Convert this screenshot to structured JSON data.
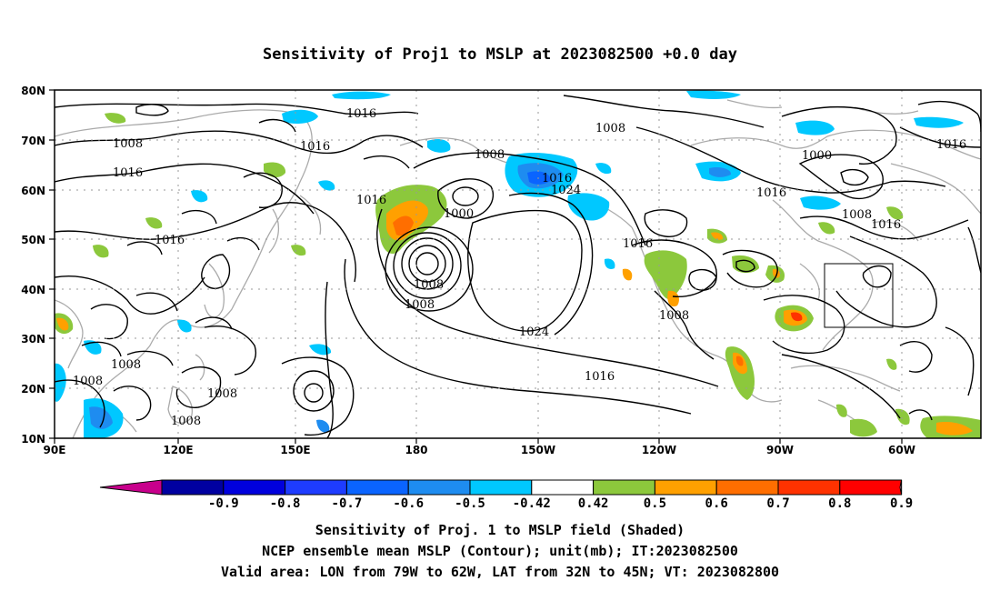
{
  "title": "Sensitivity of Proj1 to MSLP at 2023082500 +0.0 day",
  "lat_labels": [
    "80N",
    "70N",
    "60N",
    "50N",
    "40N",
    "30N",
    "20N",
    "10N"
  ],
  "lon_labels": [
    "90E",
    "120E",
    "150E",
    "180",
    "150W",
    "120W",
    "90W",
    "60W"
  ],
  "contour_labels": [
    "1016",
    "1008",
    "1008",
    "1016",
    "1016",
    "1008",
    "1000",
    "1016",
    "1016",
    "1024",
    "1016",
    "1000",
    "1008",
    "1024",
    "1016",
    "1016",
    "1008",
    "1016",
    "1016",
    "1008",
    "1008",
    "1008",
    "1008",
    "1016",
    "1008"
  ],
  "colorbar": {
    "labels": [
      "-0.9",
      "-0.8",
      "-0.7",
      "-0.6",
      "-0.5",
      "-0.42",
      "0.42",
      "0.5",
      "0.6",
      "0.7",
      "0.8",
      "0.9"
    ],
    "colors": [
      "#0000a0",
      "#0000dd",
      "#1e3cff",
      "#0a64ff",
      "#1e8cf0",
      "#00c8ff",
      "#ffffff",
      "#8cc83c",
      "#ffa000",
      "#ff6e00",
      "#ff3200",
      "#ff0000"
    ],
    "low_extend_color": "#c8008c",
    "high_extend_color": "#ffa0c8"
  },
  "captions": {
    "line1": "Sensitivity of Proj. 1 to MSLP field (Shaded)",
    "line2": "NCEP ensemble mean MSLP (Contour); unit(mb); IT:2023082500",
    "line3": "Valid area: LON from 79W to 62W, LAT from 32N to 45N; VT: 2023082800"
  }
}
